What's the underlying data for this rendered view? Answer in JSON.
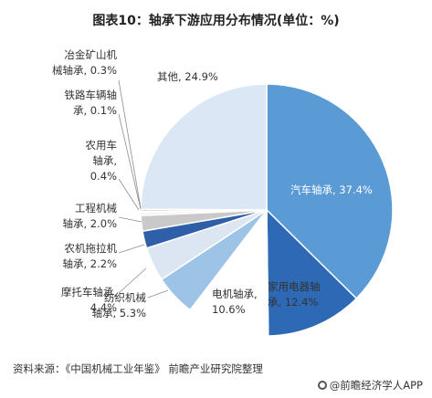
{
  "title": "图表10：轴承下游应用分布情况(单位：%)",
  "source": "资料来源：《中国机械工业年鉴》 前瞻产业研究院整理",
  "brand": "@前瞻经济学人APP",
  "chart_data": {
    "type": "pie",
    "title": "图表10：轴承下游应用分布情况(单位：%)",
    "unit": "%",
    "slices": [
      {
        "label": "汽车轴承",
        "value": 37.4,
        "color": "#5b9bd5"
      },
      {
        "label": "家用电器轴承",
        "value": 12.4,
        "color": "#2e69b6"
      },
      {
        "label": "电机轴承",
        "value": 10.6,
        "color": "#ffffff"
      },
      {
        "label": "纺织机械轴承",
        "value": 5.3,
        "color": "#9dc3e6"
      },
      {
        "label": "摩托车轴承",
        "value": 4.4,
        "color": "#dce6f2"
      },
      {
        "label": "农机拖拉机轴承",
        "value": 2.2,
        "color": "#2e5fa8"
      },
      {
        "label": "工程机械轴承",
        "value": 2.0,
        "color": "#c9c9c9"
      },
      {
        "label": "农用车轴承",
        "value": 0.4,
        "color": "#f2f2f2"
      },
      {
        "label": "铁路车辆轴承",
        "value": 0.1,
        "color": "#e0e0e0"
      },
      {
        "label": "冶金矿山机械轴承",
        "value": 0.3,
        "color": "#d9d9d9"
      },
      {
        "label": "其他",
        "value": 24.9,
        "color": "#dbe7f5"
      }
    ],
    "label_text": [
      [
        "汽车轴承, 37.4%"
      ],
      [
        "家用电器轴",
        "承, 12.4%"
      ],
      [
        "电机轴承,",
        "10.6%"
      ],
      [
        "纺织机械",
        "轴承, 5.3%"
      ],
      [
        "摩托车轴承,",
        "4.4%"
      ],
      [
        "农机拖拉机",
        "轴承, 2.2%"
      ],
      [
        "工程机械",
        "轴承, 2.0%"
      ],
      [
        "农用车",
        "轴承,",
        "0.4%"
      ],
      [
        "铁路车辆轴",
        "承, 0.1%"
      ],
      [
        "冶金矿山机",
        "械轴承, 0.3%"
      ],
      [
        "其他, 24.9%"
      ]
    ]
  }
}
